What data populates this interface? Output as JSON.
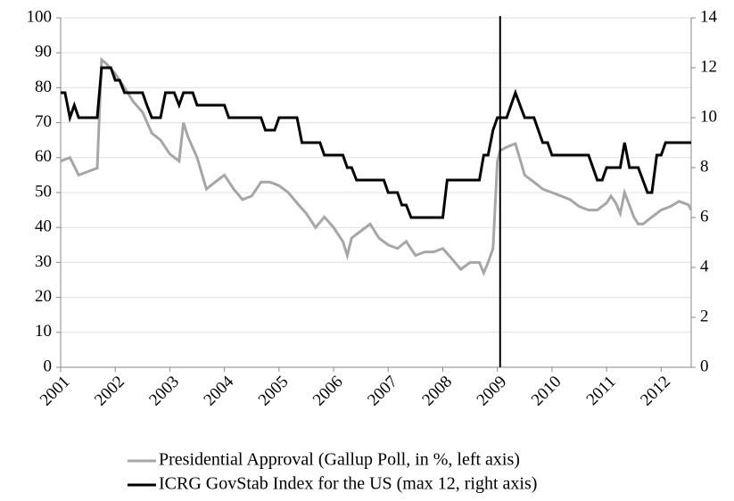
{
  "chart_data": {
    "type": "line",
    "xlim": [
      2001,
      2012.55
    ],
    "xticks": [
      2001,
      2002,
      2003,
      2004,
      2005,
      2006,
      2007,
      2008,
      2009,
      2010,
      2011,
      2012
    ],
    "ylim": [
      0,
      100
    ],
    "yticks": [
      0,
      10,
      20,
      30,
      40,
      50,
      60,
      70,
      80,
      90,
      100
    ],
    "y2lim": [
      0,
      14
    ],
    "y2ticks": [
      0,
      2,
      4,
      6,
      8,
      10,
      12,
      14
    ],
    "grid": true,
    "legend": "bottom",
    "vline": 2009.05,
    "series": [
      {
        "name": "Presidential Approval (Gallup Poll, in %, left axis)",
        "color": "#a6a6a6",
        "axis": "y",
        "x": [
          2001.0,
          2001.17,
          2001.33,
          2001.5,
          2001.67,
          2001.75,
          2001.83,
          2002.0,
          2002.17,
          2002.33,
          2002.5,
          2002.67,
          2002.83,
          2003.0,
          2003.17,
          2003.25,
          2003.33,
          2003.5,
          2003.67,
          2003.83,
          2004.0,
          2004.17,
          2004.33,
          2004.5,
          2004.67,
          2004.83,
          2005.0,
          2005.17,
          2005.33,
          2005.5,
          2005.67,
          2005.83,
          2006.0,
          2006.17,
          2006.25,
          2006.33,
          2006.5,
          2006.67,
          2006.83,
          2007.0,
          2007.17,
          2007.33,
          2007.5,
          2007.67,
          2007.83,
          2008.0,
          2008.17,
          2008.33,
          2008.5,
          2008.67,
          2008.75,
          2008.83,
          2008.92,
          2009.0,
          2009.05,
          2009.17,
          2009.33,
          2009.5,
          2009.67,
          2009.83,
          2010.0,
          2010.17,
          2010.33,
          2010.5,
          2010.67,
          2010.83,
          2011.0,
          2011.08,
          2011.17,
          2011.25,
          2011.33,
          2011.5,
          2011.58,
          2011.67,
          2011.83,
          2012.0,
          2012.17,
          2012.33,
          2012.5,
          2012.55
        ],
        "values": [
          59,
          60,
          55,
          56,
          57,
          88,
          87,
          84,
          80,
          76,
          73,
          67,
          65,
          61,
          59,
          70,
          66,
          60,
          51,
          53,
          55,
          51,
          48,
          49,
          53,
          53,
          52,
          50,
          47,
          44,
          40,
          43,
          40,
          36,
          32,
          37,
          39,
          41,
          37,
          35,
          34,
          36,
          32,
          33,
          33,
          34,
          31,
          28,
          30,
          30,
          27,
          30,
          34,
          59,
          62,
          63,
          64,
          55,
          53,
          51,
          50,
          49,
          48,
          46,
          45,
          45,
          47,
          49,
          47,
          44,
          50,
          43,
          41,
          41,
          43,
          45,
          46,
          47.5,
          46.5,
          45
        ]
      },
      {
        "name": "ICRG GovStab Index for the US (max 12, right axis)",
        "color": "#000000",
        "axis": "y2",
        "x": [
          2001.0,
          2001.08,
          2001.17,
          2001.25,
          2001.33,
          2001.67,
          2001.75,
          2001.92,
          2002.0,
          2002.08,
          2002.17,
          2002.5,
          2002.58,
          2002.67,
          2002.83,
          2002.92,
          2003.08,
          2003.17,
          2003.25,
          2003.42,
          2003.5,
          2004.0,
          2004.08,
          2004.67,
          2004.75,
          2004.92,
          2005.0,
          2005.33,
          2005.42,
          2005.75,
          2005.83,
          2006.17,
          2006.25,
          2006.33,
          2006.42,
          2006.92,
          2007.0,
          2007.17,
          2007.25,
          2007.33,
          2007.42,
          2008.0,
          2008.08,
          2008.67,
          2008.75,
          2008.83,
          2008.92,
          2009.0,
          2009.17,
          2009.25,
          2009.33,
          2009.5,
          2009.67,
          2009.83,
          2009.92,
          2010.0,
          2010.67,
          2010.83,
          2010.92,
          2011.0,
          2011.25,
          2011.33,
          2011.42,
          2011.58,
          2011.75,
          2011.83,
          2011.92,
          2012.0,
          2012.08,
          2012.55
        ],
        "values": [
          11,
          11,
          10,
          10.5,
          10,
          10,
          12,
          12,
          11.5,
          11.5,
          11,
          11,
          10.5,
          10,
          10,
          11,
          11,
          10.5,
          11,
          11,
          10.5,
          10.5,
          10,
          10,
          9.5,
          9.5,
          10,
          10,
          9,
          9,
          8.5,
          8.5,
          8,
          8,
          7.5,
          7.5,
          7,
          7,
          6.5,
          6.5,
          6,
          6,
          7.5,
          7.5,
          8.5,
          8.5,
          9.5,
          10,
          10,
          10.5,
          11,
          10,
          10,
          9,
          9,
          8.5,
          8.5,
          7.5,
          7.5,
          8,
          8,
          9,
          8,
          8,
          7,
          7,
          8.5,
          8.5,
          9,
          9
        ]
      }
    ]
  }
}
